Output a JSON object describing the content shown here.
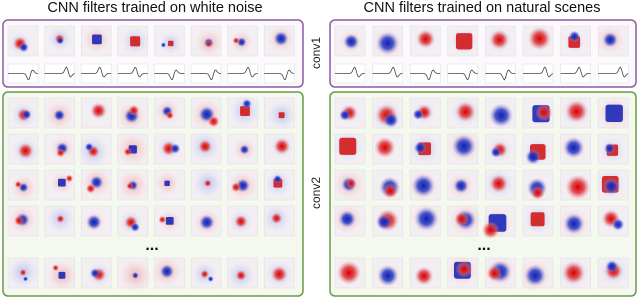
{
  "panels": [
    {
      "title": "CNN filters trained on white noise",
      "ellipsis": "..."
    },
    {
      "title": "CNN filters trained on natural scenes",
      "ellipsis": "..."
    }
  ],
  "layers": [
    "conv1",
    "conv2"
  ]
}
